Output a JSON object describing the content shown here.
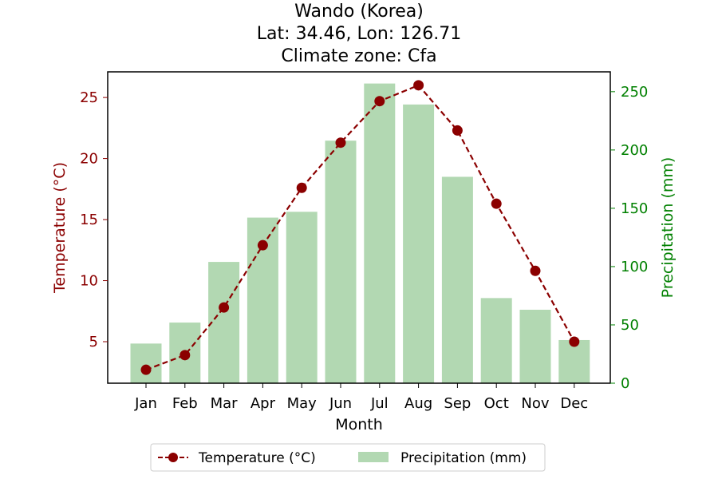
{
  "chart_data": {
    "type": "bar+line",
    "title_lines": [
      "Wando (Korea)",
      "Lat: 34.46, Lon: 126.71",
      "Climate zone: Cfa"
    ],
    "xlabel": "Month",
    "ylabel_left": "Temperature (°C)",
    "ylabel_right": "Precipitation (mm)",
    "categories": [
      "Jan",
      "Feb",
      "Mar",
      "Apr",
      "May",
      "Jun",
      "Jul",
      "Aug",
      "Sep",
      "Oct",
      "Nov",
      "Dec"
    ],
    "series": [
      {
        "name": "Temperature (°C)",
        "type": "line",
        "axis": "left",
        "color": "#8b0000",
        "values": [
          2.7,
          3.9,
          7.8,
          12.9,
          17.6,
          21.3,
          24.7,
          26.0,
          22.3,
          16.3,
          10.8,
          5.0
        ]
      },
      {
        "name": "Precipitation (mm)",
        "type": "bar",
        "axis": "right",
        "color": "#b2d8b2",
        "values": [
          34,
          52,
          104,
          142,
          147,
          208,
          257,
          239,
          177,
          73,
          63,
          37
        ]
      }
    ],
    "ylim_left": [
      1.6,
      27.1
    ],
    "yticks_left": [
      5,
      10,
      15,
      20,
      25
    ],
    "ylim_right": [
      0,
      267
    ],
    "yticks_right": [
      0,
      50,
      100,
      150,
      200,
      250
    ],
    "legend_position": "bottom-center",
    "grid": false
  }
}
